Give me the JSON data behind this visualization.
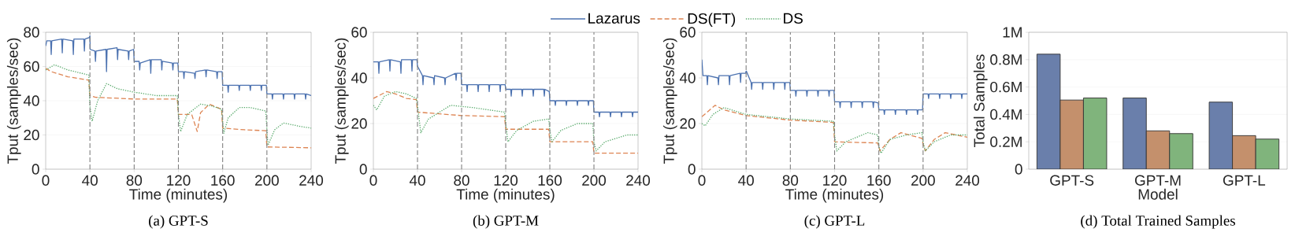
{
  "chart_data": [
    {
      "type": "line",
      "title": "(a) GPT-S",
      "xlabel": "Time (minutes)",
      "ylabel": "Tput (samples/sec)",
      "xlim": [
        0,
        240
      ],
      "ylim": [
        0,
        80
      ],
      "xticks": [
        0,
        40,
        80,
        120,
        160,
        200,
        240
      ],
      "yticks": [
        0,
        20,
        40,
        60,
        80
      ],
      "grid": "y",
      "ref_lines": [
        {
          "axis": "x",
          "value": 40,
          "color": "#808080",
          "line_style": "dashed"
        },
        {
          "axis": "x",
          "value": 80,
          "color": "#808080",
          "line_style": "dashed"
        },
        {
          "axis": "x",
          "value": 120,
          "color": "#808080",
          "line_style": "dashed"
        },
        {
          "axis": "x",
          "value": 160,
          "color": "#808080",
          "line_style": "dashed"
        },
        {
          "axis": "x",
          "value": 200,
          "color": "#808080",
          "line_style": "dashed"
        }
      ],
      "series": [
        {
          "color": "#4c72b0",
          "line_style": "solid",
          "x": [
            0,
            1,
            4.5,
            5,
            5.5,
            14.5,
            15,
            15.5,
            24.5,
            25,
            25.5,
            34.5,
            35,
            35.5,
            39.5,
            40,
            40.2,
            44.5,
            45,
            45.5,
            54.5,
            55,
            55.5,
            64.5,
            65,
            65.5,
            74.5,
            75,
            75.5,
            79.5,
            80,
            84.5,
            85,
            85.5,
            94.5,
            95,
            95.5,
            104.5,
            105,
            105.5,
            114.5,
            115,
            115.5,
            119.5,
            120,
            124.5,
            125,
            125.5,
            134.5,
            135,
            135.5,
            144.5,
            145,
            145.5,
            154.5,
            155,
            155.5,
            159.5,
            160,
            164.5,
            165,
            165.5,
            174.5,
            175,
            175.5,
            184.5,
            185,
            185.5,
            194.5,
            195,
            195.5,
            199.5,
            200,
            204.5,
            205,
            205.5,
            214.5,
            215,
            215.5,
            224.5,
            225,
            225.5,
            234.5,
            235,
            235.5,
            240
          ],
          "values": [
            72,
            75,
            75,
            67,
            75,
            76,
            68,
            76,
            75,
            67,
            76,
            76,
            69,
            76,
            77,
            78,
            70,
            69,
            63,
            69,
            70,
            57,
            70,
            71,
            64,
            70,
            69,
            64,
            69,
            70,
            63,
            63,
            58,
            62,
            64,
            56,
            64,
            64,
            58,
            63,
            62,
            58,
            62,
            62,
            57,
            57,
            53,
            57,
            56,
            53,
            57,
            58,
            54,
            58,
            57,
            53,
            57,
            57,
            49,
            49,
            45,
            49,
            49,
            46,
            49,
            49,
            46,
            49,
            49,
            46,
            49,
            49,
            44,
            44,
            41,
            44,
            44,
            41,
            44,
            44,
            41,
            44,
            44,
            41,
            44,
            43
          ]
        },
        {
          "color": "#dd8452",
          "line_style": "dashed",
          "x": [
            0,
            5,
            10,
            20,
            30,
            39,
            40,
            45,
            80,
            119,
            120,
            132,
            137,
            140,
            148,
            159,
            160,
            180,
            199,
            200,
            240
          ],
          "values": [
            59,
            57,
            56,
            54,
            53,
            52,
            43,
            42,
            41,
            41,
            32,
            32,
            22,
            33,
            38,
            35,
            24,
            23,
            22.5,
            13,
            12.5
          ]
        },
        {
          "color": "#55a868",
          "line_style": "dotted",
          "x": [
            0,
            8,
            20,
            39,
            40,
            42,
            47,
            55,
            65,
            80,
            100,
            119,
            120,
            122,
            128,
            140,
            150,
            159,
            160,
            161,
            165,
            175,
            185,
            199,
            200,
            201,
            207,
            215,
            230,
            240
          ],
          "values": [
            58,
            61,
            58,
            55,
            37,
            28,
            40,
            50,
            47,
            45,
            43,
            43,
            32,
            22,
            32,
            38,
            37,
            35,
            28,
            21,
            30,
            36,
            36,
            34,
            23,
            14,
            23,
            27,
            25,
            24
          ]
        }
      ]
    },
    {
      "type": "line",
      "title": "(b) GPT-M",
      "xlabel": "Time (minutes)",
      "ylabel": "Tput (samples/sec)",
      "xlim": [
        0,
        240
      ],
      "ylim": [
        0,
        60
      ],
      "xticks": [
        0,
        40,
        80,
        120,
        160,
        200,
        240
      ],
      "yticks": [
        0,
        20,
        40,
        60
      ],
      "grid": "y",
      "legend": "top",
      "ref_lines": [
        {
          "axis": "x",
          "value": 40,
          "color": "#808080",
          "line_style": "dashed"
        },
        {
          "axis": "x",
          "value": 80,
          "color": "#808080",
          "line_style": "dashed"
        },
        {
          "axis": "x",
          "value": 120,
          "color": "#808080",
          "line_style": "dashed"
        },
        {
          "axis": "x",
          "value": 160,
          "color": "#808080",
          "line_style": "dashed"
        },
        {
          "axis": "x",
          "value": 200,
          "color": "#808080",
          "line_style": "dashed"
        }
      ],
      "series": [
        {
          "name": "Lazarus",
          "color": "#4c72b0",
          "line_style": "solid",
          "x": [
            0,
            1,
            4.5,
            5,
            5.5,
            14.5,
            15,
            15.5,
            24.5,
            25,
            25.5,
            34.5,
            35,
            35.5,
            39.5,
            40,
            40.2,
            44.5,
            45,
            45.5,
            54.5,
            55,
            55.5,
            64.5,
            65,
            65.5,
            74.5,
            75,
            75.5,
            79.5,
            80,
            84.5,
            85,
            85.5,
            94.5,
            95,
            95.5,
            104.5,
            105,
            105.5,
            114.5,
            115,
            115.5,
            119.5,
            120,
            124.5,
            125,
            125.5,
            134.5,
            135,
            135.5,
            144.5,
            145,
            145.5,
            154.5,
            155,
            155.5,
            159.5,
            160,
            164.5,
            165,
            165.5,
            174.5,
            175,
            175.5,
            184.5,
            185,
            185.5,
            194.5,
            195,
            195.5,
            199.5,
            200,
            204.5,
            205,
            205.5,
            214.5,
            215,
            215.5,
            224.5,
            225,
            225.5,
            234.5,
            235,
            235.5,
            240
          ],
          "values": [
            47,
            47,
            47,
            42,
            47,
            48,
            43,
            48,
            47,
            42,
            48,
            48,
            43,
            48,
            48,
            45,
            45,
            41,
            37,
            41,
            40,
            37,
            41,
            40,
            37,
            40,
            42,
            39,
            42,
            42,
            37,
            37,
            34,
            37,
            37,
            34,
            37,
            37,
            34,
            37,
            37,
            34,
            37,
            37,
            35,
            35,
            32,
            35,
            35,
            32,
            35,
            35,
            32,
            35,
            35,
            32,
            35,
            34,
            30,
            30,
            28,
            30,
            30,
            28,
            30,
            30,
            28,
            30,
            30,
            28,
            30,
            30,
            25,
            25,
            23,
            25,
            25,
            23,
            25,
            25,
            23,
            25,
            25,
            23,
            25,
            25
          ]
        },
        {
          "name": "DS(FT)",
          "color": "#dd8452",
          "line_style": "dashed",
          "x": [
            0,
            12,
            20,
            30,
            39,
            40,
            80,
            119,
            120,
            159,
            160,
            199,
            200,
            240
          ],
          "values": [
            31,
            34,
            33,
            31,
            30.5,
            25,
            23.5,
            23,
            17.5,
            17.5,
            12,
            12,
            7,
            7
          ]
        },
        {
          "name": "DS",
          "color": "#55a868",
          "line_style": "dotted",
          "x": [
            0,
            3,
            10,
            20,
            30,
            39,
            40,
            43,
            50,
            70,
            90,
            119,
            120,
            122,
            130,
            145,
            159,
            160,
            162,
            170,
            185,
            199,
            200,
            202,
            210,
            230,
            240
          ],
          "values": [
            28,
            26,
            32,
            34,
            33,
            31,
            28,
            16,
            22,
            28,
            27,
            25,
            20,
            12,
            17,
            21,
            22,
            17,
            12,
            17,
            20,
            20,
            12,
            8,
            12,
            15,
            15
          ]
        }
      ]
    },
    {
      "type": "line",
      "title": "(c) GPT-L",
      "xlabel": "Time (minutes)",
      "ylabel": "Tput (samples/sec)",
      "xlim": [
        0,
        240
      ],
      "ylim": [
        0,
        60
      ],
      "xticks": [
        0,
        40,
        80,
        120,
        160,
        200,
        240
      ],
      "yticks": [
        0,
        20,
        40,
        60
      ],
      "grid": "y",
      "ref_lines": [
        {
          "axis": "x",
          "value": 40,
          "color": "#808080",
          "line_style": "dashed"
        },
        {
          "axis": "x",
          "value": 80,
          "color": "#808080",
          "line_style": "dashed"
        },
        {
          "axis": "x",
          "value": 120,
          "color": "#808080",
          "line_style": "dashed"
        },
        {
          "axis": "x",
          "value": 160,
          "color": "#808080",
          "line_style": "dashed"
        },
        {
          "axis": "x",
          "value": 200,
          "color": "#808080",
          "line_style": "dashed"
        }
      ],
      "series": [
        {
          "color": "#4c72b0",
          "line_style": "solid",
          "x": [
            0,
            1,
            4.5,
            5,
            5.5,
            14.5,
            15,
            15.5,
            24.5,
            25,
            25.5,
            34.5,
            35,
            35.5,
            39.5,
            40,
            40.2,
            44.5,
            45,
            45.5,
            54.5,
            55,
            55.5,
            64.5,
            65,
            65.5,
            74.5,
            75,
            75.5,
            79.5,
            80,
            84.5,
            85,
            85.5,
            94.5,
            95,
            95.5,
            104.5,
            105,
            105.5,
            114.5,
            115,
            115.5,
            119.5,
            120,
            124.5,
            125,
            125.5,
            134.5,
            135,
            135.5,
            144.5,
            145,
            145.5,
            154.5,
            155,
            155.5,
            159.5,
            160,
            164.5,
            165,
            165.5,
            174.5,
            175,
            175.5,
            184.5,
            185,
            185.5,
            194.5,
            195,
            195.5,
            199.5,
            200,
            204.5,
            205,
            205.5,
            214.5,
            215,
            215.5,
            224.5,
            225,
            225.5,
            234.5,
            235,
            235.5,
            240
          ],
          "values": [
            48,
            41,
            41,
            37,
            41,
            40,
            37,
            41,
            41,
            37,
            41,
            42,
            38,
            42,
            42,
            43,
            43,
            38,
            35,
            38,
            38,
            35,
            38,
            38,
            35,
            38,
            38,
            35,
            38,
            38,
            34.5,
            34.5,
            32,
            34.5,
            34.5,
            32,
            34.5,
            34.5,
            32,
            34.5,
            34.5,
            32,
            34.5,
            34.5,
            29.5,
            29.5,
            27,
            29.5,
            29.5,
            27,
            29.5,
            29.5,
            27,
            29.5,
            29.5,
            27,
            29.5,
            29,
            26,
            26,
            24,
            26,
            26,
            24,
            26,
            26,
            24,
            26,
            26,
            24,
            26,
            26,
            33,
            33,
            31,
            33,
            33,
            31,
            33,
            33,
            31,
            33,
            33,
            31,
            33,
            33
          ]
        },
        {
          "color": "#dd8452",
          "line_style": "dashed",
          "x": [
            0,
            12,
            20,
            40,
            80,
            119,
            120,
            159,
            161,
            170,
            180,
            199,
            200,
            202,
            210,
            220,
            240
          ],
          "values": [
            23,
            28,
            26,
            23.5,
            21.5,
            20.5,
            12,
            11.5,
            8,
            13,
            16,
            13.5,
            11,
            8,
            13,
            16,
            14
          ]
        },
        {
          "color": "#55a868",
          "line_style": "dotted",
          "x": [
            0,
            3,
            10,
            20,
            40,
            80,
            119,
            120,
            122,
            130,
            150,
            159,
            160,
            162,
            170,
            185,
            199,
            200,
            202,
            210,
            225,
            240
          ],
          "values": [
            20,
            19,
            24,
            27,
            24,
            22,
            21,
            15,
            8,
            12,
            16,
            15,
            10,
            7,
            13,
            15,
            16,
            12,
            8,
            12,
            15,
            15
          ]
        }
      ]
    },
    {
      "type": "bar",
      "title": "(d) Total Trained Samples",
      "xlabel": "Model",
      "ylabel": "Total Samples",
      "categories": [
        "GPT-S",
        "GPT-M",
        "GPT-L"
      ],
      "ylim": [
        0,
        1000000
      ],
      "yticks": [
        0,
        {
          "value": 200000,
          "label": "0.2M"
        },
        {
          "value": 400000,
          "label": "0.4M"
        },
        {
          "value": 600000,
          "label": "0.6M"
        },
        {
          "value": 800000,
          "label": "0.8M"
        },
        {
          "value": 1000000,
          "label": "1M"
        }
      ],
      "grid": "y",
      "series": [
        {
          "color": "#6a7fab",
          "values": [
            840000,
            520000,
            490000
          ]
        },
        {
          "color": "#c4906c",
          "values": [
            505000,
            280000,
            245000
          ]
        },
        {
          "color": "#80b47c",
          "values": [
            520000,
            260000,
            220000
          ]
        }
      ]
    }
  ]
}
